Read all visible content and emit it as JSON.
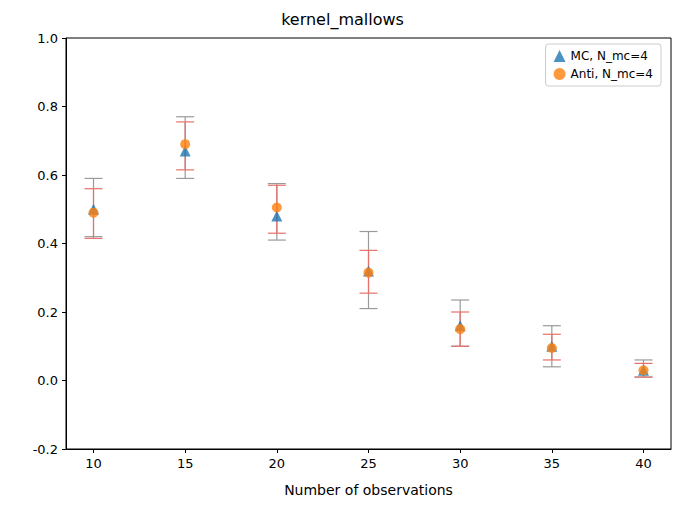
{
  "chart_data": {
    "type": "scatter",
    "title": "kernel_mallows",
    "x_label": "Number of observations",
    "x": [
      10,
      15,
      20,
      25,
      30,
      35,
      40
    ],
    "series": [
      {
        "name": "MC, N_mc=4",
        "color": "#1f77b4",
        "marker": "triangle",
        "values": [
          0.5,
          0.67,
          0.48,
          0.32,
          0.16,
          0.1,
          0.03
        ],
        "error_low": [
          0.42,
          0.59,
          0.41,
          0.21,
          0.1,
          0.04,
          0.01
        ],
        "error_high": [
          0.59,
          0.77,
          0.575,
          0.435,
          0.235,
          0.16,
          0.06
        ]
      },
      {
        "name": "Anti, N_mc=4",
        "color": "#ff7f0e",
        "marker": "circle",
        "values": [
          0.49,
          0.69,
          0.505,
          0.315,
          0.15,
          0.095,
          0.03
        ],
        "error_low": [
          0.415,
          0.615,
          0.43,
          0.255,
          0.1,
          0.06,
          0.01
        ],
        "error_high": [
          0.56,
          0.755,
          0.57,
          0.38,
          0.2,
          0.135,
          0.05
        ]
      }
    ],
    "xlim": [
      8.5,
      41.5
    ],
    "xticks": [
      10,
      15,
      20,
      25,
      30,
      35,
      40
    ],
    "ylim": [
      -0.2,
      1.0
    ],
    "yticks": [
      -0.2,
      {
        "value": 0,
        "label": "0.0"
      },
      0.2,
      0.4,
      0.6,
      0.8,
      {
        "value": 1,
        "label": "1.0"
      }
    ],
    "grid": false,
    "legend": "upper right"
  }
}
